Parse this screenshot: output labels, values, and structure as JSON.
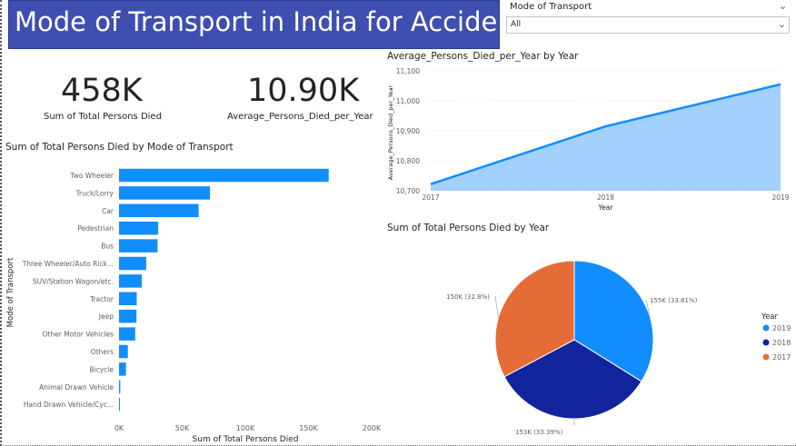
{
  "title": "Mode of Transport in India for Accident",
  "slicer": {
    "label": "Mode of Transport",
    "value": "All"
  },
  "cards": [
    {
      "value": "458K",
      "label": "Sum of Total Persons Died"
    },
    {
      "value": "10.90K",
      "label": "Average_Persons_Died_per_Year"
    }
  ],
  "colors": {
    "bar": "#118dff",
    "area_fill": "#a3d1ff",
    "area_line": "#118dff",
    "banner": "#3f4fb0",
    "y2019": "#118dff",
    "y2018": "#12239e",
    "y2017": "#e66c37"
  },
  "chart_data": [
    {
      "type": "bar",
      "orientation": "horizontal",
      "title": "Sum of Total Persons Died by Mode of Transport",
      "xlabel": "Sum of Total Persons Died",
      "ylabel": "Mode of Transport",
      "categories": [
        "Two Wheeler",
        "Truck/Lorry",
        "Car",
        "Pedestrian",
        "Bus",
        "Three Wheeler/Auto Rick...",
        "SUV/Station Wagon/etc.",
        "Tractor",
        "Jeep",
        "Other Motor Vehicles",
        "Others",
        "Bicycle",
        "Animal Drawn Vehicle",
        "Hand Drawn Vehicle/Cyc..."
      ],
      "values": [
        166000,
        72000,
        63000,
        31000,
        30500,
        21500,
        18000,
        14000,
        13800,
        12800,
        7000,
        5500,
        1000,
        600
      ],
      "xlim": [
        0,
        200000
      ],
      "xticks": [
        "0K",
        "50K",
        "100K",
        "150K",
        "200K"
      ]
    },
    {
      "type": "area",
      "title": "Average_Persons_Died_per_Year by Year",
      "xlabel": "Year",
      "ylabel": "Average_Persons_Died_per_Year",
      "x": [
        "2017",
        "2018",
        "2019"
      ],
      "values": [
        10722,
        10915,
        11055
      ],
      "ylim": [
        10700,
        11100
      ],
      "yticks": [
        "10,700",
        "10,800",
        "10,900",
        "11,000",
        "11,100"
      ]
    },
    {
      "type": "pie",
      "title": "Sum of Total Persons Died by Year",
      "legend_title": "Year",
      "legend_position": "right",
      "slices": [
        {
          "name": "2019",
          "value": 155,
          "label": "155K (33.81%)"
        },
        {
          "name": "2018",
          "value": 153,
          "label": "153K (33.39%)"
        },
        {
          "name": "2017",
          "value": 150,
          "label": "150K (32.8%)"
        }
      ]
    }
  ]
}
